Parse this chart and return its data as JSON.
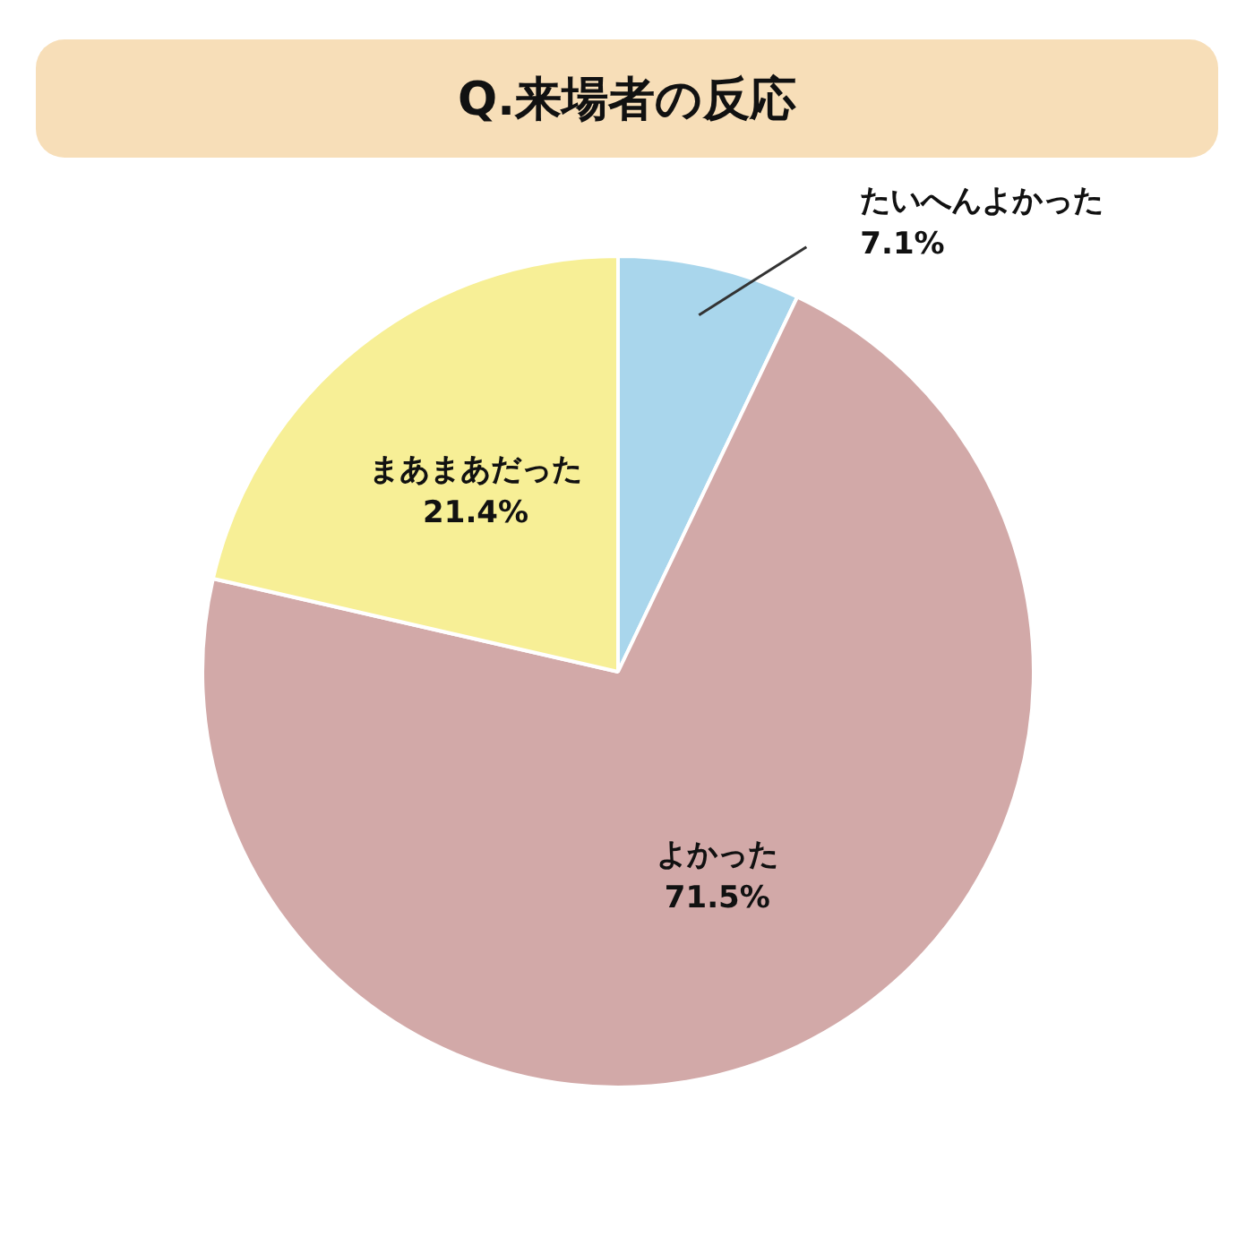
{
  "chart_data": {
    "type": "pie",
    "title": "Q.来場者の反応",
    "categories": [
      "たいへんよかった",
      "よかった",
      "まあまあだった"
    ],
    "values": [
      7.1,
      71.5,
      21.4
    ],
    "value_labels": [
      "7.1%",
      "71.5%",
      "21.4%"
    ],
    "colors": [
      "#a9d6ec",
      "#d2a9a8",
      "#f7ef96"
    ],
    "legend": false
  }
}
